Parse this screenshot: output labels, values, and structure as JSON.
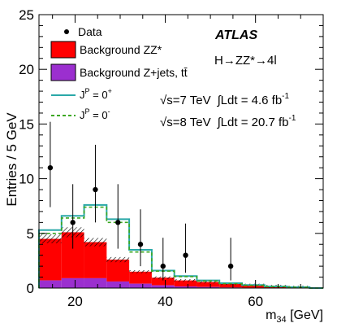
{
  "chart_data": {
    "type": "histogram",
    "x_label_main": "m",
    "x_label_sub": "34",
    "x_label_unit": " [GeV]",
    "y_label": "Entries / 5 GeV",
    "x_range": [
      12,
      75
    ],
    "y_range": [
      0,
      25
    ],
    "x_ticks": [
      20,
      40,
      60
    ],
    "y_ticks": [
      0,
      5,
      10,
      15,
      20,
      25
    ],
    "bin_edges": [
      12,
      17,
      22,
      27,
      32,
      37,
      42,
      47,
      52,
      57,
      62,
      67,
      72,
      75
    ],
    "series": [
      {
        "name": "Background Z+jets, tt̄",
        "color": "#9b2fcf",
        "values": [
          0.7,
          0.9,
          0.9,
          0.6,
          0.4,
          0.25,
          0.15,
          0.1,
          0.05,
          0.03,
          0.02,
          0.01,
          0
        ]
      },
      {
        "name": "Background ZZ*",
        "color": "#ff0000",
        "values": [
          3.8,
          4.2,
          3.3,
          2.0,
          1.1,
          0.7,
          0.55,
          0.45,
          0.35,
          0.25,
          0.15,
          0.08,
          0
        ]
      },
      {
        "name": "J^P = 0^+",
        "color": "#2aa8a8",
        "values": [
          5.3,
          6.6,
          7.6,
          6.3,
          3.5,
          1.6,
          1.1,
          0.7,
          0.45,
          0.28,
          0.15,
          0.08,
          0
        ]
      },
      {
        "name": "J^P = 0^-",
        "color": "#3ca821",
        "values": [
          5.0,
          6.4,
          7.4,
          6.0,
          3.3,
          1.55,
          1.05,
          0.65,
          0.4,
          0.25,
          0.13,
          0.07,
          0
        ]
      }
    ],
    "data_points": [
      {
        "x": 14.5,
        "y": 11,
        "err_up": 4.2,
        "err_down": 3.6
      },
      {
        "x": 19.5,
        "y": 6,
        "err_up": 3.5,
        "err_down": 2.4
      },
      {
        "x": 24.5,
        "y": 9,
        "err_up": 4.1,
        "err_down": 3.0
      },
      {
        "x": 29.5,
        "y": 6,
        "err_up": 3.5,
        "err_down": 2.4
      },
      {
        "x": 34.5,
        "y": 4,
        "err_up": 3.2,
        "err_down": 2.0
      },
      {
        "x": 39.5,
        "y": 2,
        "err_up": 2.6,
        "err_down": 1.3
      },
      {
        "x": 44.5,
        "y": 3,
        "err_up": 2.9,
        "err_down": 1.6
      },
      {
        "x": 54.5,
        "y": 2,
        "err_up": 2.6,
        "err_down": 1.3
      }
    ],
    "legend": {
      "data": "Data",
      "zz": "Background ZZ*",
      "zjets": "Background Z+jets, tt̄",
      "jp_plus": "J",
      "jp_plus_sup": "P",
      "jp_plus_rest": " = 0",
      "jp_plus_parity": "+",
      "jp_minus": "J",
      "jp_minus_sup": "P",
      "jp_minus_rest": " = 0",
      "jp_minus_parity": "-"
    },
    "annotations": {
      "experiment": "ATLAS",
      "process": "H→ZZ*→4l",
      "lumi7_sqrt": "√s=7 TeV",
      "lumi7_int": "∫Ldt = 4.6 fb",
      "lumi7_exp": "-1",
      "lumi8_sqrt": "√s=8 TeV",
      "lumi8_int": "∫Ldt = 20.7 fb",
      "lumi8_exp": "-1"
    }
  }
}
